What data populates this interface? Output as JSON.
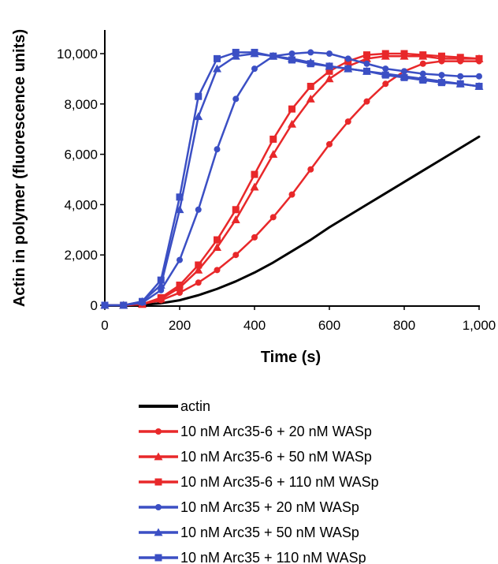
{
  "chart_data": {
    "type": "line",
    "title": "",
    "xlabel": "Time (s)",
    "ylabel": "Actin in polymer (fluorescence units)",
    "xlim": [
      0,
      1000
    ],
    "ylim": [
      0,
      10000
    ],
    "x_ticks": [
      0,
      200,
      400,
      600,
      800,
      1000
    ],
    "x_tick_labels": [
      "0",
      "200",
      "400",
      "600",
      "800",
      "1,000"
    ],
    "y_ticks": [
      0,
      2000,
      4000,
      6000,
      8000,
      10000
    ],
    "y_tick_labels": [
      "0",
      "2,000",
      "4,000",
      "6,000",
      "8,000",
      "10,000"
    ],
    "grid": false,
    "legend_position": "bottom",
    "series": [
      {
        "name": "actin",
        "color": "#000000",
        "marker": "none",
        "x": [
          0,
          50,
          100,
          150,
          200,
          250,
          300,
          350,
          400,
          450,
          500,
          550,
          600,
          650,
          700,
          750,
          800,
          850,
          900,
          950,
          1000
        ],
        "y": [
          0,
          0,
          20,
          80,
          200,
          400,
          650,
          950,
          1300,
          1700,
          2150,
          2600,
          3100,
          3550,
          4000,
          4450,
          4900,
          5350,
          5800,
          6250,
          6700
        ]
      },
      {
        "name": "10 nM Arc35-6 + 20 nM WASp",
        "color": "#e8282a",
        "marker": "circle",
        "x": [
          0,
          50,
          100,
          150,
          200,
          250,
          300,
          350,
          400,
          450,
          500,
          550,
          600,
          650,
          700,
          750,
          800,
          850,
          900,
          950,
          1000
        ],
        "y": [
          0,
          0,
          50,
          200,
          500,
          900,
          1400,
          2000,
          2700,
          3500,
          4400,
          5400,
          6400,
          7300,
          8100,
          8800,
          9300,
          9600,
          9700,
          9700,
          9700
        ]
      },
      {
        "name": "10 nM Arc35-6 + 50 nM WASp",
        "color": "#e8282a",
        "marker": "triangle",
        "x": [
          0,
          50,
          100,
          150,
          200,
          250,
          300,
          350,
          400,
          450,
          500,
          550,
          600,
          650,
          700,
          750,
          800,
          850,
          900,
          950,
          1000
        ],
        "y": [
          0,
          0,
          40,
          250,
          700,
          1400,
          2300,
          3400,
          4700,
          6000,
          7200,
          8200,
          9000,
          9500,
          9800,
          9900,
          9900,
          9900,
          9800,
          9800,
          9800
        ]
      },
      {
        "name": "10 nM Arc35-6 + 110 nM WASp",
        "color": "#e8282a",
        "marker": "square",
        "x": [
          0,
          50,
          100,
          150,
          200,
          250,
          300,
          350,
          400,
          450,
          500,
          550,
          600,
          650,
          700,
          750,
          800,
          850,
          900,
          950,
          1000
        ],
        "y": [
          0,
          0,
          40,
          300,
          800,
          1600,
          2600,
          3800,
          5200,
          6600,
          7800,
          8700,
          9300,
          9700,
          9950,
          10000,
          10000,
          9950,
          9900,
          9850,
          9800
        ]
      },
      {
        "name": "10 nM Arc35 + 20 nM WASp",
        "color": "#3b4fc4",
        "marker": "circle",
        "x": [
          0,
          50,
          100,
          150,
          200,
          250,
          300,
          350,
          400,
          450,
          500,
          550,
          600,
          650,
          700,
          750,
          800,
          850,
          900,
          950,
          1000
        ],
        "y": [
          0,
          0,
          100,
          600,
          1800,
          3800,
          6200,
          8200,
          9400,
          9900,
          10000,
          10050,
          10000,
          9800,
          9600,
          9400,
          9300,
          9200,
          9150,
          9100,
          9100
        ]
      },
      {
        "name": "10 nM Arc35 + 50 nM WASp",
        "color": "#3b4fc4",
        "marker": "triangle",
        "x": [
          0,
          50,
          100,
          150,
          200,
          250,
          300,
          350,
          400,
          450,
          500,
          550,
          600,
          650,
          700,
          750,
          800,
          850,
          900,
          950,
          1000
        ],
        "y": [
          0,
          0,
          150,
          800,
          3800,
          7500,
          9400,
          9900,
          10000,
          9900,
          9800,
          9650,
          9500,
          9400,
          9300,
          9200,
          9100,
          9000,
          8900,
          8800,
          8700
        ]
      },
      {
        "name": "10 nM Arc35 + 110 nM WASp",
        "color": "#3b4fc4",
        "marker": "square",
        "x": [
          0,
          50,
          100,
          150,
          200,
          250,
          300,
          350,
          400,
          450,
          500,
          550,
          600,
          650,
          700,
          750,
          800,
          850,
          900,
          950,
          1000
        ],
        "y": [
          0,
          0,
          150,
          1000,
          4300,
          8300,
          9800,
          10050,
          10050,
          9900,
          9750,
          9600,
          9500,
          9400,
          9300,
          9150,
          9050,
          8950,
          8850,
          8800,
          8700
        ]
      }
    ]
  }
}
